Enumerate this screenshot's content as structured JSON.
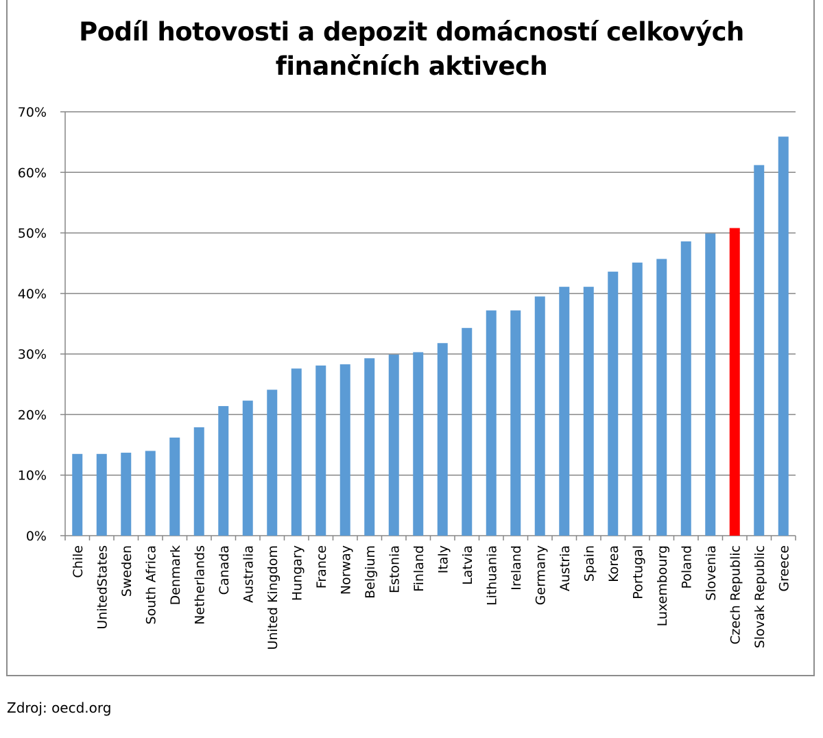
{
  "chart_data": {
    "type": "bar",
    "title_lines": [
      "Podíl hotovosti a depozit domácností celkových",
      "finančních aktivech"
    ],
    "categories": [
      "Chile",
      "UnitedStates",
      "Sweden",
      "South Africa",
      "Denmark",
      "Netherlands",
      "Canada",
      "Australia",
      "United Kingdom",
      "Hungary",
      "France",
      "Norway",
      "Belgium",
      "Estonia",
      "Finland",
      "Italy",
      "Latvia",
      "Lithuania",
      "Ireland",
      "Germany",
      "Austria",
      "Spain",
      "Korea",
      "Portugal",
      "Luxembourg",
      "Poland",
      "Slovenia",
      "Czech Republic",
      "Slovak Republic",
      "Greece"
    ],
    "values": [
      13.5,
      13.5,
      13.7,
      14.0,
      16.2,
      17.9,
      21.4,
      22.3,
      24.1,
      27.6,
      28.1,
      28.3,
      29.3,
      29.9,
      30.3,
      31.8,
      34.3,
      37.2,
      37.2,
      39.5,
      41.1,
      41.1,
      43.6,
      45.1,
      45.7,
      48.6,
      49.9,
      50.8,
      61.2,
      65.9
    ],
    "highlight_category": "Czech Republic",
    "ylim": [
      0,
      70
    ],
    "yticks": [
      "0%",
      "10%",
      "20%",
      "30%",
      "40%",
      "50%",
      "60%",
      "70%"
    ],
    "xlabel": "",
    "ylabel": "",
    "grid": true,
    "bar_color": "#5b9bd5",
    "highlight_color": "#ff0000",
    "grid_color": "#868686"
  },
  "source_note": "Zdroj: oecd.org"
}
